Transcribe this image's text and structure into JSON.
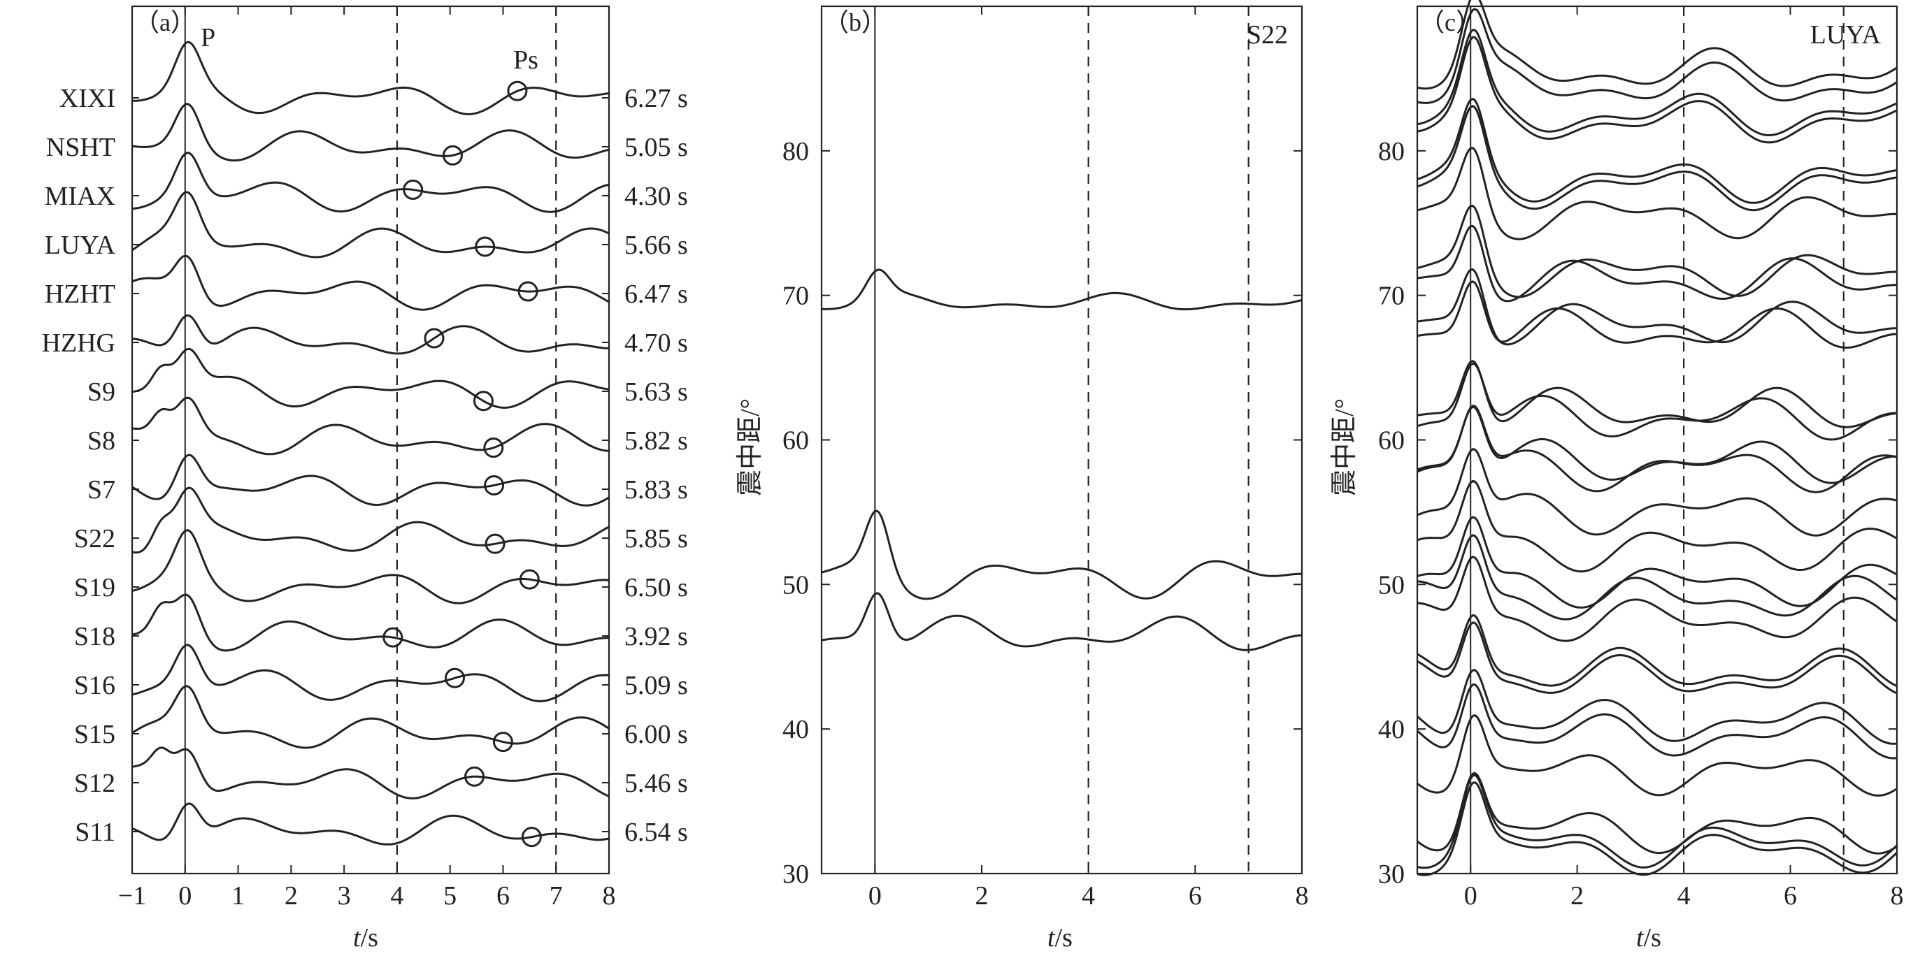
{
  "chart_data": [
    {
      "type": "line",
      "panel_label": "（a）",
      "phase_labels": {
        "p": "P",
        "ps": "Ps"
      },
      "xlabel_italic": "t",
      "xlabel_unit": "/s",
      "xlim": [
        -1,
        8
      ],
      "x_ticks": [
        "−1",
        "0",
        "1",
        "2",
        "3",
        "4",
        "5",
        "6",
        "7",
        "8"
      ],
      "reference_lines": [
        0,
        4,
        7
      ],
      "stations": [
        "XIXI",
        "NSHT",
        "MIAX",
        "LUYA",
        "HZHT",
        "HZHG",
        "S9",
        "S8",
        "S7",
        "S22",
        "S19",
        "S18",
        "S16",
        "S15",
        "S12",
        "S11"
      ],
      "ps_times": [
        6.27,
        5.05,
        4.3,
        5.66,
        6.47,
        4.7,
        5.63,
        5.82,
        5.83,
        5.85,
        6.5,
        3.92,
        5.09,
        6.0,
        5.46,
        6.54
      ],
      "ps_labels": [
        "6.27 s",
        "5.05 s",
        "4.30 s",
        "5.66 s",
        "6.47 s",
        "4.70 s",
        "5.63 s",
        "5.82 s",
        "5.83 s",
        "5.85 s",
        "6.50 s",
        "3.92 s",
        "5.09 s",
        "6.00 s",
        "5.46 s",
        "6.54 s"
      ]
    },
    {
      "type": "line",
      "panel_label": "（b）",
      "title": "S22",
      "ylabel": "震中距/°",
      "xlabel_italic": "t",
      "xlabel_unit": "/s",
      "xlim": [
        -1,
        8
      ],
      "ylim": [
        30,
        90
      ],
      "x_ticks": [
        "0",
        "2",
        "4",
        "6",
        "8"
      ],
      "y_ticks": [
        "30",
        "40",
        "50",
        "60",
        "70",
        "80"
      ],
      "reference_lines": [
        0,
        4,
        7
      ],
      "traces": [
        {
          "distance": 69.5,
          "peak_amplitude": 2
        },
        {
          "distance": 50.5,
          "peak_amplitude": 4.5
        },
        {
          "distance": 46.5,
          "peak_amplitude": 4
        }
      ]
    },
    {
      "type": "line",
      "panel_label": "（c）",
      "title": "LUYA",
      "ylabel": "震中距/°",
      "xlabel_italic": "t",
      "xlabel_unit": "/s",
      "xlim": [
        -1,
        8
      ],
      "ylim": [
        30,
        90
      ],
      "x_ticks": [
        "0",
        "2",
        "4",
        "6",
        "8"
      ],
      "y_ticks": [
        "30",
        "40",
        "50",
        "60",
        "70",
        "80"
      ],
      "reference_lines": [
        0,
        4,
        7
      ],
      "trace_distances": [
        85.5,
        84.5,
        82.5,
        82,
        78,
        77.5,
        75.5,
        71.5,
        71,
        68,
        67.5,
        62,
        61.5,
        58.5,
        58,
        55,
        52.5,
        50,
        49,
        47.5,
        44,
        43.5,
        40.5,
        39.5,
        37,
        33,
        32,
        31.5
      ]
    }
  ]
}
